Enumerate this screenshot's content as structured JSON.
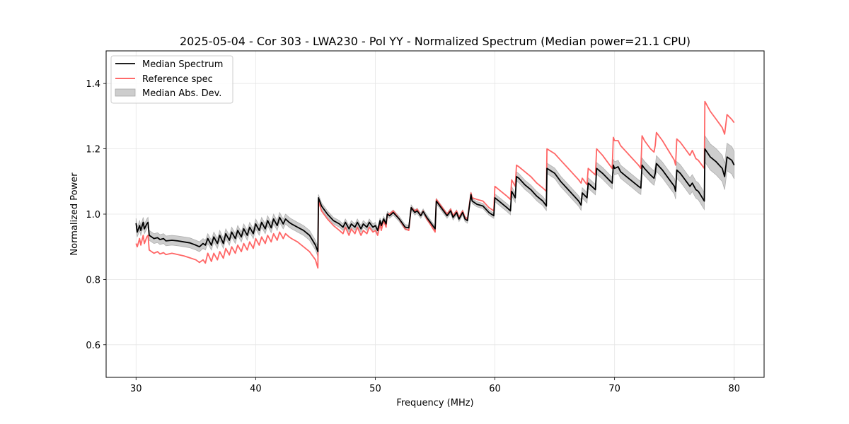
{
  "chart_data": {
    "type": "line",
    "title": "2025-05-04 - Cor 303 - LWA230 - Pol YY - Normalized Spectrum (Median power=21.1 CPU)",
    "xlabel": "Frequency (MHz)",
    "ylabel": "Normalized Power",
    "xlim": [
      27.5,
      82.5
    ],
    "ylim": [
      0.5,
      1.5
    ],
    "xticks": [
      30,
      40,
      50,
      60,
      70,
      80
    ],
    "xtick_labels": [
      "30",
      "40",
      "50",
      "60",
      "70",
      "80"
    ],
    "yticks": [
      0.6,
      0.8,
      1.0,
      1.2,
      1.4
    ],
    "ytick_labels": [
      "0.6",
      "0.8",
      "1.0",
      "1.2",
      "1.4"
    ],
    "grid": true,
    "legend": {
      "placement": "top-left",
      "entries": [
        {
          "label": "Median Spectrum",
          "kind": "line",
          "color": "#000000"
        },
        {
          "label": "Reference spec",
          "kind": "line",
          "color": "#ff5555"
        },
        {
          "label": "Median Abs. Dev.",
          "kind": "band",
          "color": "#c0c0c0"
        }
      ]
    },
    "x": [
      30.0,
      30.1,
      30.3,
      30.4,
      30.6,
      30.7,
      30.9,
      31.0,
      31.1,
      31.3,
      31.5,
      31.8,
      32.0,
      32.3,
      32.5,
      33.0,
      33.5,
      34.0,
      34.5,
      35.0,
      35.3,
      35.6,
      35.8,
      36.0,
      36.3,
      36.5,
      36.8,
      37.0,
      37.3,
      37.5,
      37.8,
      38.0,
      38.3,
      38.5,
      38.8,
      39.0,
      39.3,
      39.5,
      39.8,
      40.0,
      40.3,
      40.5,
      40.8,
      41.0,
      41.3,
      41.5,
      41.8,
      42.0,
      42.3,
      42.5,
      42.8,
      43.0,
      43.5,
      44.0,
      44.5,
      45.0,
      45.2,
      45.25,
      45.5,
      46.0,
      46.5,
      47.0,
      47.3,
      47.5,
      47.8,
      48.0,
      48.3,
      48.5,
      48.8,
      49.0,
      49.3,
      49.5,
      49.8,
      50.0,
      50.2,
      50.4,
      50.5,
      50.7,
      50.9,
      51.0,
      51.2,
      51.5,
      52.0,
      52.5,
      52.8,
      53.0,
      53.3,
      53.5,
      53.8,
      54.0,
      54.3,
      54.5,
      55.0,
      55.1,
      55.5,
      56.0,
      56.3,
      56.5,
      56.8,
      57.0,
      57.3,
      57.5,
      57.7,
      58.0,
      58.1,
      58.5,
      59.0,
      59.5,
      59.9,
      60.0,
      60.5,
      61.0,
      61.3,
      61.4,
      61.7,
      61.8,
      62.0,
      62.5,
      63.0,
      63.5,
      64.0,
      64.3,
      64.35,
      65.0,
      65.5,
      66.0,
      66.5,
      67.0,
      67.2,
      67.3,
      67.7,
      67.8,
      68.4,
      68.5,
      69.0,
      69.8,
      69.9,
      70.0,
      70.3,
      70.5,
      71.0,
      71.5,
      72.0,
      72.2,
      72.3,
      72.5,
      73.0,
      73.3,
      73.4,
      73.5,
      74.0,
      74.5,
      75.0,
      75.1,
      75.2,
      75.5,
      76.0,
      76.3,
      76.5,
      76.8,
      77.0,
      77.5,
      77.55,
      78.0,
      78.5,
      79.0,
      79.2,
      79.4,
      79.8,
      80.0
    ],
    "series": [
      {
        "name": "Median Spectrum",
        "color": "#000000",
        "values": [
          0.972,
          0.945,
          0.965,
          0.95,
          0.975,
          0.955,
          0.97,
          0.975,
          0.935,
          0.93,
          0.925,
          0.928,
          0.922,
          0.925,
          0.918,
          0.92,
          0.918,
          0.915,
          0.912,
          0.905,
          0.9,
          0.91,
          0.905,
          0.925,
          0.905,
          0.93,
          0.91,
          0.935,
          0.91,
          0.94,
          0.92,
          0.945,
          0.925,
          0.95,
          0.93,
          0.955,
          0.935,
          0.96,
          0.94,
          0.97,
          0.95,
          0.975,
          0.955,
          0.98,
          0.958,
          0.985,
          0.965,
          0.99,
          0.97,
          0.985,
          0.975,
          0.97,
          0.96,
          0.95,
          0.935,
          0.905,
          0.885,
          1.05,
          1.025,
          1.0,
          0.98,
          0.97,
          0.96,
          0.975,
          0.955,
          0.97,
          0.96,
          0.975,
          0.955,
          0.97,
          0.96,
          0.975,
          0.96,
          0.965,
          0.95,
          0.98,
          0.965,
          0.985,
          0.97,
          1.0,
          0.995,
          1.005,
          0.985,
          0.96,
          0.958,
          1.02,
          1.005,
          1.01,
          0.995,
          1.008,
          0.99,
          0.98,
          0.955,
          1.04,
          1.02,
          0.995,
          1.01,
          0.99,
          1.005,
          0.985,
          1.005,
          0.985,
          0.98,
          1.06,
          1.04,
          1.03,
          1.025,
          1.005,
          0.995,
          1.05,
          1.035,
          1.02,
          1.01,
          1.07,
          1.05,
          1.115,
          1.11,
          1.09,
          1.075,
          1.055,
          1.04,
          1.025,
          1.14,
          1.125,
          1.1,
          1.08,
          1.06,
          1.04,
          1.028,
          1.065,
          1.05,
          1.095,
          1.075,
          1.14,
          1.125,
          1.095,
          1.15,
          1.14,
          1.145,
          1.13,
          1.115,
          1.1,
          1.085,
          1.08,
          1.15,
          1.14,
          1.12,
          1.11,
          1.125,
          1.155,
          1.135,
          1.11,
          1.085,
          1.07,
          1.135,
          1.125,
          1.1,
          1.085,
          1.095,
          1.075,
          1.07,
          1.04,
          1.2,
          1.175,
          1.16,
          1.14,
          1.115,
          1.175,
          1.165,
          1.15
        ]
      },
      {
        "name": "Reference spec",
        "color": "#ff5555",
        "values": [
          0.91,
          0.9,
          0.925,
          0.905,
          0.935,
          0.91,
          0.93,
          0.935,
          0.89,
          0.885,
          0.88,
          0.885,
          0.878,
          0.882,
          0.876,
          0.88,
          0.876,
          0.872,
          0.866,
          0.86,
          0.852,
          0.86,
          0.85,
          0.88,
          0.855,
          0.88,
          0.86,
          0.885,
          0.865,
          0.895,
          0.875,
          0.9,
          0.88,
          0.905,
          0.885,
          0.91,
          0.89,
          0.915,
          0.895,
          0.925,
          0.905,
          0.93,
          0.91,
          0.935,
          0.915,
          0.94,
          0.92,
          0.945,
          0.925,
          0.94,
          0.93,
          0.925,
          0.915,
          0.9,
          0.885,
          0.86,
          0.835,
          1.04,
          1.01,
          0.985,
          0.965,
          0.95,
          0.94,
          0.96,
          0.935,
          0.955,
          0.94,
          0.96,
          0.935,
          0.95,
          0.94,
          0.96,
          0.945,
          0.95,
          0.935,
          0.97,
          0.95,
          0.98,
          0.96,
          1.0,
          1.0,
          1.01,
          0.985,
          0.955,
          0.95,
          1.02,
          1.01,
          1.015,
          0.995,
          1.01,
          0.985,
          0.975,
          0.945,
          1.045,
          1.025,
          1.0,
          1.015,
          0.995,
          1.01,
          0.99,
          1.01,
          0.99,
          0.985,
          1.065,
          1.05,
          1.045,
          1.04,
          1.02,
          1.01,
          1.085,
          1.07,
          1.055,
          1.045,
          1.105,
          1.085,
          1.15,
          1.145,
          1.13,
          1.115,
          1.095,
          1.08,
          1.07,
          1.2,
          1.185,
          1.165,
          1.145,
          1.125,
          1.105,
          1.095,
          1.11,
          1.09,
          1.14,
          1.12,
          1.2,
          1.18,
          1.14,
          1.235,
          1.225,
          1.225,
          1.21,
          1.19,
          1.17,
          1.15,
          1.14,
          1.24,
          1.225,
          1.2,
          1.19,
          1.21,
          1.25,
          1.225,
          1.195,
          1.165,
          1.15,
          1.23,
          1.22,
          1.195,
          1.18,
          1.195,
          1.17,
          1.165,
          1.14,
          1.345,
          1.315,
          1.29,
          1.265,
          1.245,
          1.305,
          1.29,
          1.28
        ]
      },
      {
        "name": "Median Abs. Dev.",
        "color": "#c0c0c0",
        "kind": "band_halfwidth_around_median",
        "values": [
          0.015,
          0.015,
          0.015,
          0.015,
          0.015,
          0.015,
          0.015,
          0.015,
          0.015,
          0.015,
          0.015,
          0.015,
          0.015,
          0.015,
          0.015,
          0.015,
          0.015,
          0.015,
          0.015,
          0.015,
          0.015,
          0.015,
          0.015,
          0.015,
          0.015,
          0.015,
          0.015,
          0.015,
          0.015,
          0.015,
          0.015,
          0.015,
          0.015,
          0.015,
          0.015,
          0.015,
          0.015,
          0.015,
          0.015,
          0.015,
          0.015,
          0.015,
          0.015,
          0.015,
          0.015,
          0.015,
          0.015,
          0.015,
          0.015,
          0.015,
          0.015,
          0.015,
          0.015,
          0.015,
          0.015,
          0.015,
          0.015,
          0.01,
          0.01,
          0.01,
          0.01,
          0.01,
          0.01,
          0.01,
          0.01,
          0.01,
          0.01,
          0.01,
          0.01,
          0.01,
          0.01,
          0.01,
          0.01,
          0.01,
          0.008,
          0.008,
          0.008,
          0.008,
          0.008,
          0.008,
          0.008,
          0.008,
          0.008,
          0.008,
          0.008,
          0.008,
          0.008,
          0.008,
          0.008,
          0.008,
          0.008,
          0.008,
          0.008,
          0.008,
          0.008,
          0.008,
          0.008,
          0.008,
          0.008,
          0.008,
          0.008,
          0.008,
          0.008,
          0.008,
          0.008,
          0.008,
          0.008,
          0.008,
          0.008,
          0.012,
          0.012,
          0.012,
          0.012,
          0.014,
          0.014,
          0.014,
          0.014,
          0.014,
          0.014,
          0.014,
          0.014,
          0.014,
          0.016,
          0.016,
          0.016,
          0.016,
          0.016,
          0.016,
          0.016,
          0.016,
          0.016,
          0.016,
          0.016,
          0.018,
          0.018,
          0.018,
          0.018,
          0.02,
          0.02,
          0.02,
          0.02,
          0.02,
          0.02,
          0.02,
          0.022,
          0.022,
          0.022,
          0.022,
          0.022,
          0.024,
          0.024,
          0.024,
          0.024,
          0.024,
          0.026,
          0.026,
          0.026,
          0.026,
          0.026,
          0.026,
          0.026,
          0.026,
          0.04,
          0.04,
          0.04,
          0.04,
          0.04,
          0.042,
          0.042,
          0.042
        ]
      }
    ]
  }
}
